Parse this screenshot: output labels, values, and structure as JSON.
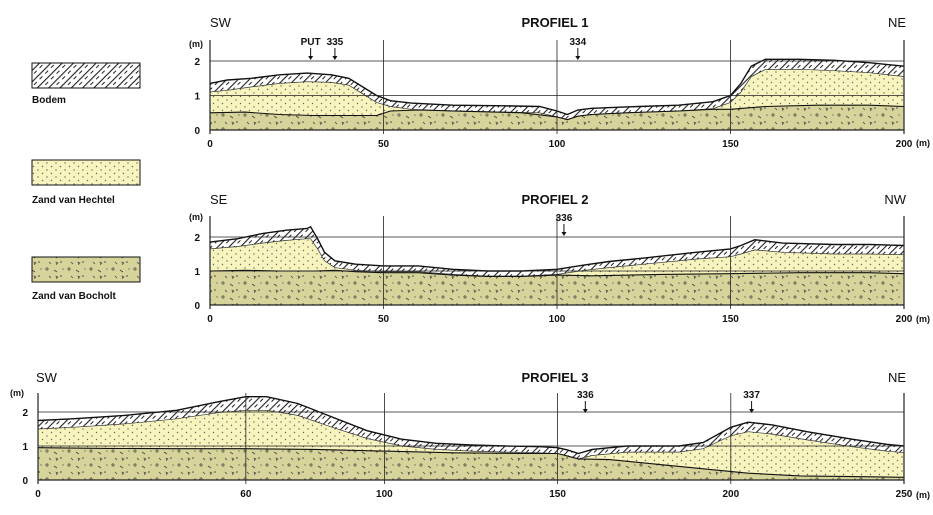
{
  "legend": [
    {
      "label": "Bodem",
      "pattern": "hatch",
      "color": "#ffffff"
    },
    {
      "label": "Zand van Hechtel",
      "pattern": "dots",
      "color": "#f7f4be"
    },
    {
      "label": "Zand van Bocholt",
      "pattern": "gravel",
      "color": "#d6d49a"
    }
  ],
  "colors": {
    "hechtel": "#f7f4be",
    "bocholt": "#d6d49a",
    "hatch": "#222222",
    "line": "#111111"
  },
  "chart_data": [
    {
      "type": "area",
      "title": "PROFIEL 1",
      "left_label": "SW",
      "right_label": "NE",
      "y_unit": "(m)",
      "x_unit": "(m)",
      "xlim": [
        0,
        200
      ],
      "ylim": [
        0,
        2
      ],
      "x_ticks": [
        0,
        50,
        100,
        150,
        200
      ],
      "y_ticks": [
        0,
        1,
        2
      ],
      "markers": [
        {
          "label": "PUT",
          "x": 29
        },
        {
          "label": "335",
          "x": 36
        },
        {
          "label": "334",
          "x": 106
        }
      ],
      "surface": [
        [
          0,
          1.35
        ],
        [
          5,
          1.45
        ],
        [
          12,
          1.5
        ],
        [
          20,
          1.6
        ],
        [
          28,
          1.65
        ],
        [
          35,
          1.6
        ],
        [
          40,
          1.5
        ],
        [
          44,
          1.25
        ],
        [
          48,
          1.0
        ],
        [
          52,
          0.85
        ],
        [
          58,
          0.78
        ],
        [
          70,
          0.72
        ],
        [
          85,
          0.7
        ],
        [
          95,
          0.68
        ],
        [
          100,
          0.55
        ],
        [
          103,
          0.45
        ],
        [
          106,
          0.58
        ],
        [
          110,
          0.63
        ],
        [
          120,
          0.67
        ],
        [
          135,
          0.72
        ],
        [
          145,
          0.82
        ],
        [
          150,
          1.0
        ],
        [
          153,
          1.35
        ],
        [
          156,
          1.85
        ],
        [
          160,
          2.05
        ],
        [
          170,
          2.05
        ],
        [
          180,
          2.02
        ],
        [
          190,
          1.95
        ],
        [
          200,
          1.85
        ]
      ],
      "soil_base": [
        [
          0,
          1.1
        ],
        [
          5,
          1.15
        ],
        [
          12,
          1.25
        ],
        [
          20,
          1.35
        ],
        [
          28,
          1.4
        ],
        [
          35,
          1.38
        ],
        [
          40,
          1.3
        ],
        [
          44,
          1.05
        ],
        [
          48,
          0.8
        ],
        [
          52,
          0.68
        ],
        [
          58,
          0.6
        ],
        [
          70,
          0.55
        ],
        [
          85,
          0.52
        ],
        [
          95,
          0.5
        ],
        [
          100,
          0.38
        ],
        [
          103,
          0.3
        ],
        [
          106,
          0.4
        ],
        [
          110,
          0.45
        ],
        [
          120,
          0.5
        ],
        [
          135,
          0.55
        ],
        [
          145,
          0.62
        ],
        [
          150,
          0.8
        ],
        [
          153,
          1.1
        ],
        [
          156,
          1.55
        ],
        [
          160,
          1.75
        ],
        [
          170,
          1.76
        ],
        [
          180,
          1.72
        ],
        [
          190,
          1.66
        ],
        [
          200,
          1.55
        ]
      ],
      "bocholt_top": [
        [
          0,
          0.5
        ],
        [
          10,
          0.52
        ],
        [
          20,
          0.45
        ],
        [
          30,
          0.42
        ],
        [
          40,
          0.42
        ],
        [
          48,
          0.42
        ],
        [
          52,
          0.55
        ],
        [
          60,
          0.58
        ],
        [
          75,
          0.54
        ],
        [
          90,
          0.5
        ],
        [
          100,
          0.38
        ],
        [
          103,
          0.3
        ],
        [
          106,
          0.4
        ],
        [
          110,
          0.45
        ],
        [
          120,
          0.5
        ],
        [
          135,
          0.55
        ],
        [
          145,
          0.6
        ],
        [
          150,
          0.6
        ],
        [
          160,
          0.68
        ],
        [
          175,
          0.72
        ],
        [
          190,
          0.72
        ],
        [
          200,
          0.68
        ]
      ]
    },
    {
      "type": "area",
      "title": "PROFIEL 2",
      "left_label": "SE",
      "right_label": "NW",
      "y_unit": "(m)",
      "x_unit": "(m)",
      "xlim": [
        0,
        200
      ],
      "ylim": [
        0,
        2
      ],
      "x_ticks": [
        0,
        50,
        100,
        150,
        200
      ],
      "y_ticks": [
        0,
        1,
        2
      ],
      "markers": [
        {
          "label": "336",
          "x": 102
        }
      ],
      "surface": [
        [
          0,
          1.85
        ],
        [
          8,
          1.95
        ],
        [
          15,
          2.1
        ],
        [
          22,
          2.2
        ],
        [
          28,
          2.25
        ],
        [
          29,
          2.3
        ],
        [
          31,
          1.95
        ],
        [
          33,
          1.55
        ],
        [
          36,
          1.3
        ],
        [
          42,
          1.2
        ],
        [
          50,
          1.15
        ],
        [
          60,
          1.15
        ],
        [
          70,
          1.05
        ],
        [
          80,
          1.0
        ],
        [
          90,
          1.0
        ],
        [
          100,
          1.05
        ],
        [
          108,
          1.18
        ],
        [
          115,
          1.28
        ],
        [
          125,
          1.38
        ],
        [
          140,
          1.55
        ],
        [
          150,
          1.65
        ],
        [
          153,
          1.75
        ],
        [
          157,
          1.92
        ],
        [
          165,
          1.82
        ],
        [
          180,
          1.78
        ],
        [
          190,
          1.78
        ],
        [
          200,
          1.75
        ]
      ],
      "soil_base": [
        [
          0,
          1.65
        ],
        [
          8,
          1.72
        ],
        [
          15,
          1.82
        ],
        [
          22,
          1.9
        ],
        [
          28,
          1.95
        ],
        [
          29,
          1.95
        ],
        [
          31,
          1.65
        ],
        [
          33,
          1.3
        ],
        [
          36,
          1.1
        ],
        [
          42,
          1.02
        ],
        [
          50,
          0.98
        ],
        [
          60,
          0.98
        ],
        [
          70,
          0.9
        ],
        [
          80,
          0.85
        ],
        [
          90,
          0.85
        ],
        [
          100,
          0.9
        ],
        [
          108,
          1.02
        ],
        [
          115,
          1.1
        ],
        [
          125,
          1.2
        ],
        [
          140,
          1.35
        ],
        [
          150,
          1.42
        ],
        [
          153,
          1.5
        ],
        [
          157,
          1.62
        ],
        [
          165,
          1.55
        ],
        [
          180,
          1.5
        ],
        [
          190,
          1.5
        ],
        [
          200,
          1.48
        ]
      ],
      "bocholt_top": [
        [
          0,
          1.0
        ],
        [
          10,
          1.02
        ],
        [
          20,
          1.0
        ],
        [
          30,
          1.0
        ],
        [
          36,
          1.02
        ],
        [
          42,
          0.98
        ],
        [
          50,
          0.95
        ],
        [
          60,
          0.95
        ],
        [
          70,
          0.88
        ],
        [
          80,
          0.84
        ],
        [
          90,
          0.84
        ],
        [
          100,
          0.88
        ],
        [
          110,
          0.86
        ],
        [
          130,
          0.9
        ],
        [
          150,
          0.92
        ],
        [
          170,
          0.95
        ],
        [
          190,
          0.95
        ],
        [
          200,
          0.92
        ]
      ]
    },
    {
      "type": "area",
      "title": "PROFIEL 3",
      "left_label": "SW",
      "right_label": "NE",
      "y_unit": "(m)",
      "x_unit": "(m)",
      "xlim": [
        0,
        250
      ],
      "ylim": [
        0,
        2
      ],
      "x_ticks": [
        0,
        60,
        100,
        150,
        200,
        250
      ],
      "y_ticks": [
        0,
        1,
        2
      ],
      "markers": [
        {
          "label": "336",
          "x": 158
        },
        {
          "label": "337",
          "x": 206
        }
      ],
      "surface": [
        [
          0,
          1.75
        ],
        [
          10,
          1.8
        ],
        [
          25,
          1.9
        ],
        [
          40,
          2.05
        ],
        [
          52,
          2.3
        ],
        [
          60,
          2.45
        ],
        [
          66,
          2.45
        ],
        [
          75,
          2.25
        ],
        [
          85,
          1.85
        ],
        [
          95,
          1.45
        ],
        [
          105,
          1.2
        ],
        [
          115,
          1.08
        ],
        [
          125,
          1.03
        ],
        [
          135,
          1.0
        ],
        [
          145,
          0.98
        ],
        [
          150,
          0.95
        ],
        [
          153,
          0.88
        ],
        [
          156,
          0.78
        ],
        [
          160,
          0.9
        ],
        [
          170,
          1.0
        ],
        [
          185,
          1.0
        ],
        [
          192,
          1.1
        ],
        [
          200,
          1.55
        ],
        [
          205,
          1.7
        ],
        [
          212,
          1.62
        ],
        [
          222,
          1.42
        ],
        [
          235,
          1.2
        ],
        [
          245,
          1.05
        ],
        [
          250,
          1.0
        ]
      ],
      "soil_base": [
        [
          0,
          1.5
        ],
        [
          10,
          1.55
        ],
        [
          25,
          1.65
        ],
        [
          40,
          1.8
        ],
        [
          52,
          1.98
        ],
        [
          60,
          2.05
        ],
        [
          66,
          2.05
        ],
        [
          75,
          1.9
        ],
        [
          85,
          1.55
        ],
        [
          95,
          1.22
        ],
        [
          105,
          1.0
        ],
        [
          115,
          0.9
        ],
        [
          125,
          0.85
        ],
        [
          135,
          0.82
        ],
        [
          145,
          0.8
        ],
        [
          150,
          0.78
        ],
        [
          153,
          0.7
        ],
        [
          156,
          0.62
        ],
        [
          160,
          0.72
        ],
        [
          170,
          0.82
        ],
        [
          185,
          0.82
        ],
        [
          192,
          0.92
        ],
        [
          200,
          1.3
        ],
        [
          205,
          1.42
        ],
        [
          212,
          1.35
        ],
        [
          222,
          1.18
        ],
        [
          235,
          0.98
        ],
        [
          245,
          0.85
        ],
        [
          250,
          0.8
        ]
      ],
      "bocholt_top": [
        [
          0,
          0.95
        ],
        [
          20,
          0.93
        ],
        [
          40,
          0.92
        ],
        [
          60,
          0.92
        ],
        [
          80,
          0.9
        ],
        [
          100,
          0.85
        ],
        [
          120,
          0.8
        ],
        [
          140,
          0.78
        ],
        [
          150,
          0.78
        ],
        [
          153,
          0.7
        ],
        [
          156,
          0.62
        ],
        [
          165,
          0.6
        ],
        [
          180,
          0.45
        ],
        [
          195,
          0.3
        ],
        [
          205,
          0.2
        ],
        [
          220,
          0.12
        ],
        [
          235,
          0.1
        ],
        [
          250,
          0.08
        ]
      ]
    }
  ]
}
